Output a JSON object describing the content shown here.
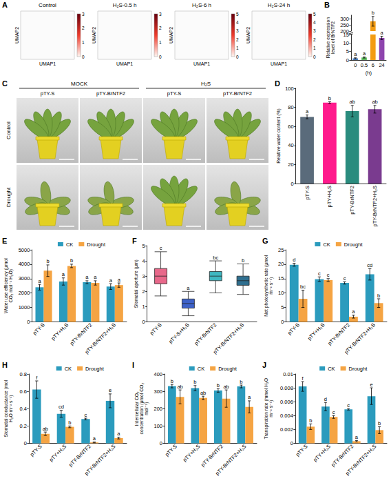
{
  "chart_data": [
    {
      "type": "umap",
      "panel": "A",
      "title": "Control",
      "x_label": "UMAP1",
      "y_label": "UMAP2",
      "colorbar": {
        "range": [
          0,
          3
        ],
        "ticks": [
          0,
          1,
          2,
          3
        ]
      }
    },
    {
      "type": "umap",
      "title": "H₂S-0.5 h",
      "x_label": "UMAP1",
      "y_label": "UMAP2",
      "colorbar": {
        "range": [
          0,
          3
        ],
        "ticks": [
          0,
          1,
          2,
          3
        ]
      }
    },
    {
      "type": "umap",
      "title": "H₂S-6 h",
      "x_label": "UMAP1",
      "y_label": "UMAP2",
      "colorbar": {
        "range": [
          0,
          5
        ],
        "ticks": [
          0,
          1,
          2,
          3,
          4,
          5
        ]
      }
    },
    {
      "type": "umap",
      "title": "H₂S-24 h",
      "x_label": "UMAP1",
      "y_label": "UMAP2",
      "colorbar": {
        "range": [
          0,
          5
        ],
        "ticks": [
          0,
          1,
          2,
          3,
          4,
          5
        ]
      }
    },
    {
      "type": "bar",
      "panel": "B",
      "categories": [
        "0",
        "0.5",
        "6",
        "24"
      ],
      "x_label": "(h)",
      "y_label": "Relative expression level of BrNTF2",
      "values": [
        1,
        1.5,
        280,
        13
      ],
      "errors": [
        0.3,
        0.3,
        40,
        1
      ],
      "letters": [
        "a",
        "a",
        "b",
        "a"
      ],
      "colors": [
        "#4a7fc1",
        "#5cb85c",
        "#f39c12",
        "#8e44ad"
      ],
      "ylim": [
        0,
        330
      ],
      "yticks": [
        0,
        5,
        10,
        15,
        200,
        250,
        300
      ],
      "axis_break": [
        15,
        200
      ],
      "grid": false
    },
    {
      "type": "photo",
      "panel": "C",
      "column_groups": [
        "MOCK",
        "H₂S"
      ],
      "columns": [
        "pTY-S",
        "pTY-BrNTF2",
        "pTY-S",
        "pTY-BrNTF2"
      ],
      "rows": [
        "Control",
        "Drought"
      ]
    },
    {
      "type": "bar",
      "panel": "D",
      "categories": [
        "pTY-S",
        "pTY+H₂S",
        "pTY-BrNTF2",
        "pTY-BrNTF2+H₂S"
      ],
      "y_label": "Relative water content (%)",
      "values": [
        70,
        85,
        76,
        78
      ],
      "errors": [
        2,
        1,
        6,
        4
      ],
      "letters": [
        "a",
        "b",
        "ab",
        "ab"
      ],
      "colors": [
        "#5a6b7b",
        "#ff1a8c",
        "#2a8c7e",
        "#7a3b8f"
      ],
      "ylim": [
        0,
        100
      ],
      "yticks": [
        0,
        20,
        40,
        60,
        80,
        100
      ],
      "grid": false
    },
    {
      "type": "bar",
      "panel": "E",
      "categories": [
        "pTY-S",
        "pTY+H₂S",
        "pTY-BrNTF2",
        "pTY-BrNTF2+H₂S"
      ],
      "y_label": "Water use efficiency (μmol CO₂ mol⁻¹ H₂O)",
      "series": [
        {
          "name": "CK",
          "color": "#2b9bbd",
          "values": [
            2400,
            2800,
            2750,
            2450
          ],
          "errors": [
            200,
            250,
            100,
            200
          ],
          "letters": [
            "a",
            "a",
            "a",
            "a"
          ]
        },
        {
          "name": "Drought",
          "color": "#f5a443",
          "values": [
            3550,
            3880,
            2700,
            2550
          ],
          "errors": [
            400,
            120,
            150,
            150
          ],
          "letters": [
            "b",
            "b",
            "a",
            "a"
          ]
        }
      ],
      "ylim": [
        0,
        5000
      ],
      "yticks": [
        0,
        1000,
        2000,
        3000,
        4000,
        5000
      ],
      "legend": "top",
      "grid": false
    },
    {
      "type": "boxplot",
      "panel": "F",
      "categories": [
        "pTY-S",
        "pTY-S+H₂S",
        "pTY-BrNTF2",
        "pTY-BrNTF2+H₂S"
      ],
      "y_label": "Stomatal aperture (μm)",
      "boxes": [
        [
          1.7,
          2.5,
          3.0,
          3.5,
          4.6
        ],
        [
          0.4,
          0.9,
          1.2,
          1.5,
          2.0
        ],
        [
          1.9,
          2.7,
          3.0,
          3.3,
          4.0
        ],
        [
          1.8,
          2.4,
          2.7,
          3.0,
          3.8
        ]
      ],
      "letters": [
        "c",
        "a",
        "bc",
        "b"
      ],
      "colors": [
        "#e8688a",
        "#3e62c9",
        "#3fb7c1",
        "#2f6f8f"
      ],
      "ylim": [
        0,
        5
      ],
      "yticks": [
        0,
        1,
        2,
        3,
        4,
        5
      ],
      "grid": false
    },
    {
      "type": "bar",
      "panel": "G",
      "categories": [
        "pTY-S",
        "pTY+H₂S",
        "pTY-BrNTF2",
        "pTY-BrNTF2+H₂S"
      ],
      "y_label": "Net photosynthetic rate (μmol m⁻² s⁻¹)",
      "series": [
        {
          "name": "CK",
          "color": "#2b9bbd",
          "values": [
            19.8,
            14.8,
            13.5,
            16.5
          ],
          "errors": [
            0.5,
            0.8,
            0.4,
            2
          ],
          "letters": [
            "d",
            "c",
            "c",
            "cd"
          ]
        },
        {
          "name": "Drought",
          "color": "#f5a443",
          "values": [
            8,
            14.5,
            1.8,
            6.5
          ],
          "errors": [
            3,
            0.5,
            0.5,
            1.5
          ],
          "letters": [
            "bc",
            "c",
            "a",
            "b"
          ]
        }
      ],
      "ylim": [
        0,
        25
      ],
      "yticks": [
        0,
        5,
        10,
        15,
        20,
        25
      ],
      "legend": "top",
      "grid": false
    },
    {
      "type": "bar",
      "panel": "H",
      "categories": [
        "pTY-S",
        "pTY+H₂S",
        "pTY-BrNTF2",
        "pTY-BrNTF2+H₂S"
      ],
      "y_label": "Stomatal conductance (mol H₂O m⁻² s⁻¹)",
      "series": [
        {
          "name": "CK",
          "color": "#2b9bbd",
          "values": [
            0.62,
            0.34,
            0.28,
            0.49
          ],
          "errors": [
            0.1,
            0.04,
            0.01,
            0.08
          ],
          "letters": [
            "f",
            "cd",
            "c",
            "e"
          ]
        },
        {
          "name": "Drought",
          "color": "#f5a443",
          "values": [
            0.11,
            0.19,
            0.01,
            0.06
          ],
          "errors": [
            0.02,
            0.01,
            0.005,
            0.01
          ],
          "letters": [
            "ab",
            "b",
            "a",
            "a"
          ]
        }
      ],
      "ylim": [
        0,
        0.8
      ],
      "yticks": [
        0,
        0.2,
        0.4,
        0.6,
        0.8
      ],
      "legend": "top",
      "grid": false
    },
    {
      "type": "bar",
      "panel": "I",
      "categories": [
        "pTY-S",
        "pTY+H₂S",
        "pTY-BrNTF2",
        "pTY-BrNTF2+H₂S"
      ],
      "y_label": "Intercellular CO₂ concentration (μmol CO₂ mol⁻¹)",
      "series": [
        {
          "name": "CK",
          "color": "#2b9bbd",
          "values": [
            330,
            318,
            305,
            328
          ],
          "errors": [
            10,
            15,
            10,
            8
          ],
          "letters": [
            "b",
            "b",
            "b",
            "b"
          ]
        },
        {
          "name": "Drought",
          "color": "#f5a443",
          "values": [
            268,
            262,
            258,
            210
          ],
          "errors": [
            40,
            10,
            50,
            35
          ],
          "letters": [
            "ab",
            "ab",
            "ab",
            "a"
          ]
        }
      ],
      "ylim": [
        0,
        400
      ],
      "yticks": [
        0,
        100,
        200,
        300,
        400
      ],
      "legend": "top",
      "grid": false
    },
    {
      "type": "bar",
      "panel": "J",
      "categories": [
        "pTY-S",
        "pTY+H₂S",
        "pTY-BrNTF2",
        "pTY-BrNTF2+H₂S"
      ],
      "y_label": "Transpiration rate (mmol H₂O m⁻² s⁻¹)",
      "series": [
        {
          "name": "CK",
          "color": "#2b9bbd",
          "values": [
            0.0082,
            0.0053,
            0.0049,
            0.0068
          ],
          "errors": [
            0.0007,
            0.0006,
            0.0001,
            0.0012
          ],
          "letters": [
            "f",
            "d",
            "c",
            "e"
          ]
        },
        {
          "name": "Drought",
          "color": "#f5a443",
          "values": [
            0.0024,
            0.0038,
            0.0003,
            0.0019
          ],
          "errors": [
            0.0004,
            0.0002,
            0.0001,
            0.0005
          ],
          "letters": [
            "b",
            "c",
            "a",
            "b"
          ]
        }
      ],
      "ylim": [
        0,
        0.01
      ],
      "yticks": [
        0,
        0.002,
        0.004,
        0.006,
        0.008,
        0.01
      ],
      "legend": "top",
      "grid": false
    }
  ]
}
